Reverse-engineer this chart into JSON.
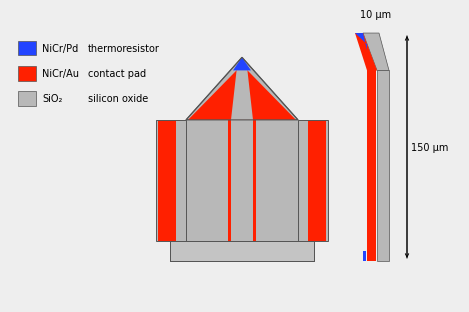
{
  "bg_color": "#eeeeee",
  "colors": {
    "gray": "#b8b8b8",
    "red": "#ff2000",
    "blue": "#2244ff",
    "dark": "#444444",
    "base_gray": "#c4c4c4",
    "outline": "#555555"
  },
  "legend": [
    {
      "color": "#2244ff",
      "label1": "NiCr/Pd",
      "label2": "thermoresistor"
    },
    {
      "color": "#ff2000",
      "label1": "NiCr/Au",
      "label2": "contact pad"
    },
    {
      "color": "#b8b8b8",
      "label1": "SiO₂",
      "label2": "silicon oxide"
    }
  ],
  "dim_10um": "10 μm",
  "dim_150um": "150 μm"
}
